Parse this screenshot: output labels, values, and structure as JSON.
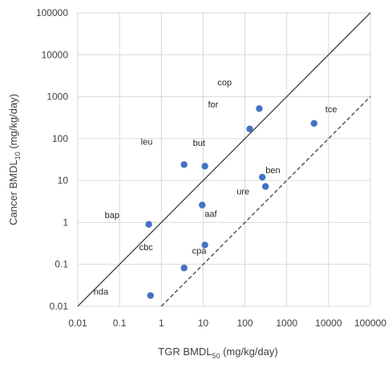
{
  "chart_data": {
    "type": "scatter",
    "title": "",
    "xlabel": "TGR BMDL",
    "xlabel_sub": "50",
    "xlabel_unit": " (mg/kg/day)",
    "ylabel": "Cancer BMDL",
    "ylabel_sub": "10",
    "ylabel_unit": "  (mg/kg/day)",
    "xscale": "log",
    "yscale": "log",
    "xlim": [
      0.01,
      100000
    ],
    "ylim": [
      0.01,
      100000
    ],
    "grid": true,
    "xticks": [
      "0.01",
      "0.1",
      "1",
      "10",
      "100",
      "1000",
      "10000",
      "100000"
    ],
    "yticks": [
      "0.01",
      "0.1",
      "1",
      "10",
      "100",
      "1000",
      "10000",
      "100000"
    ],
    "marker_color": "#4472C4",
    "points": [
      {
        "label": "nda",
        "x": 0.55,
        "y": 0.018
      },
      {
        "label": "cbc",
        "x": 3.5,
        "y": 0.082
      },
      {
        "label": "cpa",
        "x": 11,
        "y": 0.29
      },
      {
        "label": "bap",
        "x": 0.5,
        "y": 0.9
      },
      {
        "label": "aaf",
        "x": 9.5,
        "y": 2.6
      },
      {
        "label": "leu",
        "x": 3.5,
        "y": 24
      },
      {
        "label": "but",
        "x": 11,
        "y": 22
      },
      {
        "label": "for",
        "x": 130,
        "y": 170
      },
      {
        "label": "cop",
        "x": 220,
        "y": 520
      },
      {
        "label": "ben",
        "x": 260,
        "y": 12
      },
      {
        "label": "ure",
        "x": 310,
        "y": 7.2
      },
      {
        "label": "tce",
        "x": 4500,
        "y": 230
      }
    ],
    "reference_lines": [
      {
        "style": "solid",
        "relation": "y = x"
      },
      {
        "style": "dashed",
        "relation": "y = x / 100"
      }
    ]
  }
}
